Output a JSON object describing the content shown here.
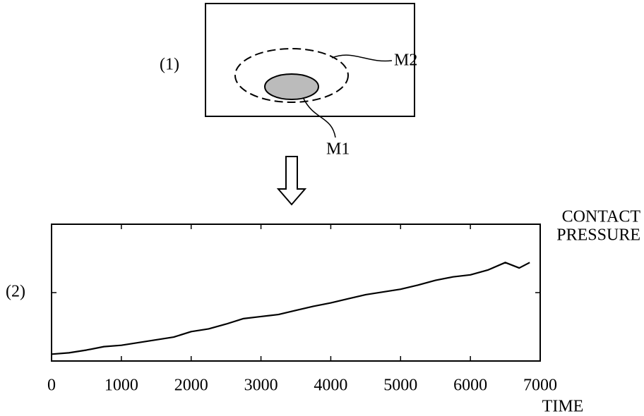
{
  "diagram": {
    "panel_label": "(1)",
    "outer_label": "M2",
    "inner_label": "M1"
  },
  "chart_data": {
    "type": "line",
    "panel_label": "(2)",
    "y_label_lines": [
      "CONTACT",
      "PRESSURE"
    ],
    "x_label": "TIME",
    "x": [
      0,
      250,
      500,
      750,
      1000,
      1250,
      1500,
      1750,
      2000,
      2250,
      2500,
      2750,
      3000,
      3250,
      3500,
      3750,
      4000,
      4250,
      4500,
      4750,
      5000,
      5250,
      5500,
      5750,
      6000,
      6250,
      6500,
      6700,
      6850
    ],
    "series": [
      {
        "color": "#000000",
        "values": [
          0.1,
          0.12,
          0.16,
          0.21,
          0.23,
          0.27,
          0.31,
          0.35,
          0.43,
          0.47,
          0.54,
          0.62,
          0.65,
          0.68,
          0.74,
          0.8,
          0.85,
          0.91,
          0.97,
          1.01,
          1.05,
          1.11,
          1.18,
          1.23,
          1.26,
          1.33,
          1.44,
          1.36,
          1.44
        ]
      }
    ],
    "xlim": [
      0,
      7000
    ],
    "xticks": [
      0,
      1000,
      2000,
      3000,
      4000,
      5000,
      6000,
      7000
    ],
    "ylim": [
      0,
      2
    ],
    "yticks": [
      1
    ]
  }
}
